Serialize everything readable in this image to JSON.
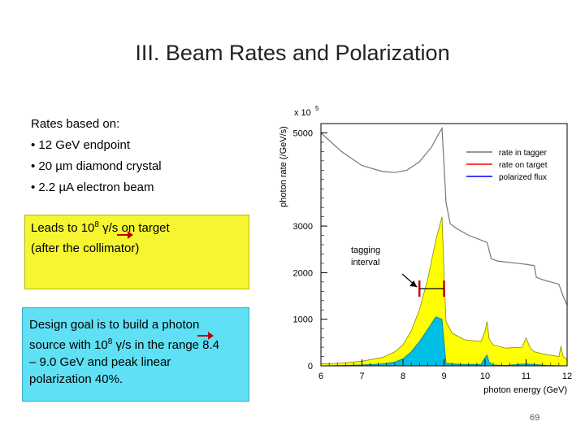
{
  "slide": {
    "title": "III. Beam Rates and Polarization",
    "page_number": "69"
  },
  "rates": {
    "heading": "Rates based on:",
    "bullets": [
      "• 12 GeV endpoint",
      "• 20 µm diamond crystal",
      "• 2.2 µA electron beam"
    ]
  },
  "yellow_box": {
    "line1_prefix": "Leads to 10",
    "line1_exp": "8",
    "line1_suffix": " γ/s on target",
    "line2": "(after the collimator)"
  },
  "cyan_box": {
    "line1": "Design goal is to build a photon",
    "line2_prefix": "source with 10",
    "line2_exp": "8",
    "line2_suffix": " γ/s in the range 8.4",
    "line3": "– 9.0 GeV and peak linear",
    "line4": "polarization 40%."
  },
  "colors": {
    "yellow_fill": "#ffff00",
    "cyan_fill": "#00bfe6",
    "tagger_line": "#777777",
    "target_line": "#ff0000",
    "polarized_line": "#0000ff",
    "box_yellow": "#f5f532",
    "box_cyan": "#5fe0f5"
  },
  "chart_data": {
    "type": "line",
    "title": "",
    "xlabel": "photon energy (GeV)",
    "ylabel": "photon rate (/GeV/s)",
    "y_multiplier": "x 10",
    "y_multiplier_exp": "5",
    "xlim": [
      6,
      12
    ],
    "ylim": [
      0,
      5200
    ],
    "xticks": [
      6,
      7,
      8,
      9,
      10,
      11,
      12
    ],
    "yticks": [
      0,
      1000,
      2000,
      3000,
      5000
    ],
    "legend": [
      {
        "label": "rate in tagger",
        "color": "#777777"
      },
      {
        "label": "rate on target",
        "color": "#ff0000"
      },
      {
        "label": "polarized flux",
        "color": "#0000ff"
      }
    ],
    "annotation": {
      "line1": "tagging",
      "line2": "interval",
      "x_range": [
        8.4,
        9.0
      ]
    },
    "series": [
      {
        "name": "rate in tagger",
        "x": [
          6.0,
          6.5,
          7.0,
          7.5,
          7.8,
          8.1,
          8.4,
          8.7,
          8.85,
          8.95,
          9.05,
          9.15,
          9.3,
          9.6,
          9.9,
          10.05,
          10.15,
          10.3,
          10.6,
          11.0,
          11.2,
          11.25,
          11.4,
          11.6,
          11.8,
          11.9,
          12.0
        ],
        "y": [
          5000,
          4600,
          4300,
          4170,
          4150,
          4200,
          4380,
          4700,
          4950,
          5100,
          3500,
          3050,
          2950,
          2800,
          2700,
          2650,
          2300,
          2250,
          2220,
          2180,
          2150,
          1900,
          1850,
          1800,
          1750,
          1500,
          1300
        ]
      },
      {
        "name": "rate on target",
        "x": [
          6.0,
          6.5,
          7.0,
          7.5,
          7.8,
          8.0,
          8.2,
          8.4,
          8.6,
          8.8,
          8.95,
          9.0,
          9.05,
          9.2,
          9.5,
          9.9,
          10.0,
          10.05,
          10.1,
          10.2,
          10.5,
          10.9,
          11.0,
          11.1,
          11.2,
          11.5,
          11.8,
          11.85,
          11.9,
          12.0
        ],
        "y": [
          40,
          60,
          100,
          180,
          300,
          450,
          750,
          1200,
          1850,
          2700,
          3200,
          2000,
          950,
          700,
          560,
          520,
          750,
          950,
          580,
          450,
          380,
          400,
          600,
          380,
          300,
          240,
          200,
          420,
          200,
          130
        ]
      },
      {
        "name": "polarized flux",
        "x": [
          6.0,
          7.0,
          7.5,
          7.8,
          8.0,
          8.2,
          8.4,
          8.6,
          8.8,
          8.95,
          9.0,
          9.05,
          9.2,
          9.5,
          9.9,
          10.0,
          10.05,
          10.1,
          10.2,
          10.5,
          11.0,
          11.5,
          12.0
        ],
        "y": [
          0,
          20,
          40,
          80,
          150,
          300,
          520,
          780,
          1050,
          1000,
          500,
          60,
          40,
          30,
          30,
          180,
          230,
          80,
          20,
          10,
          40,
          10,
          0
        ]
      }
    ]
  }
}
